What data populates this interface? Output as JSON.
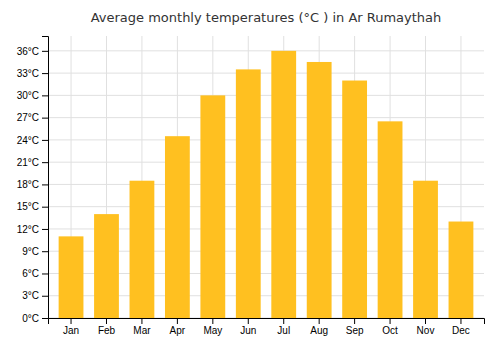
{
  "chart_data": {
    "type": "bar",
    "title": "Average monthly temperatures (°C ) in Ar Rumaythah",
    "categories": [
      "Jan",
      "Feb",
      "Mar",
      "Apr",
      "May",
      "Jun",
      "Jul",
      "Aug",
      "Sep",
      "Oct",
      "Nov",
      "Dec"
    ],
    "values": [
      11,
      14,
      18.5,
      24.5,
      30,
      33.5,
      36,
      34.5,
      32,
      26.5,
      18.5,
      13
    ],
    "color": "#FFC020",
    "ylim": [
      0,
      38
    ],
    "yticks": [
      {
        "value": 0,
        "label": "0°C"
      },
      {
        "value": 3,
        "label": "3°C"
      },
      {
        "value": 6,
        "label": "6°C"
      },
      {
        "value": 9,
        "label": "9°C"
      },
      {
        "value": 12,
        "label": "12°C"
      },
      {
        "value": 15,
        "label": "15°C"
      },
      {
        "value": 18,
        "label": "18°C"
      },
      {
        "value": 21,
        "label": "21°C"
      },
      {
        "value": 24,
        "label": "24°C"
      },
      {
        "value": 27,
        "label": "27°C"
      },
      {
        "value": 30,
        "label": "30°C"
      },
      {
        "value": 33,
        "label": "33°C"
      },
      {
        "value": 36,
        "label": "36°C"
      }
    ],
    "grid": true
  }
}
